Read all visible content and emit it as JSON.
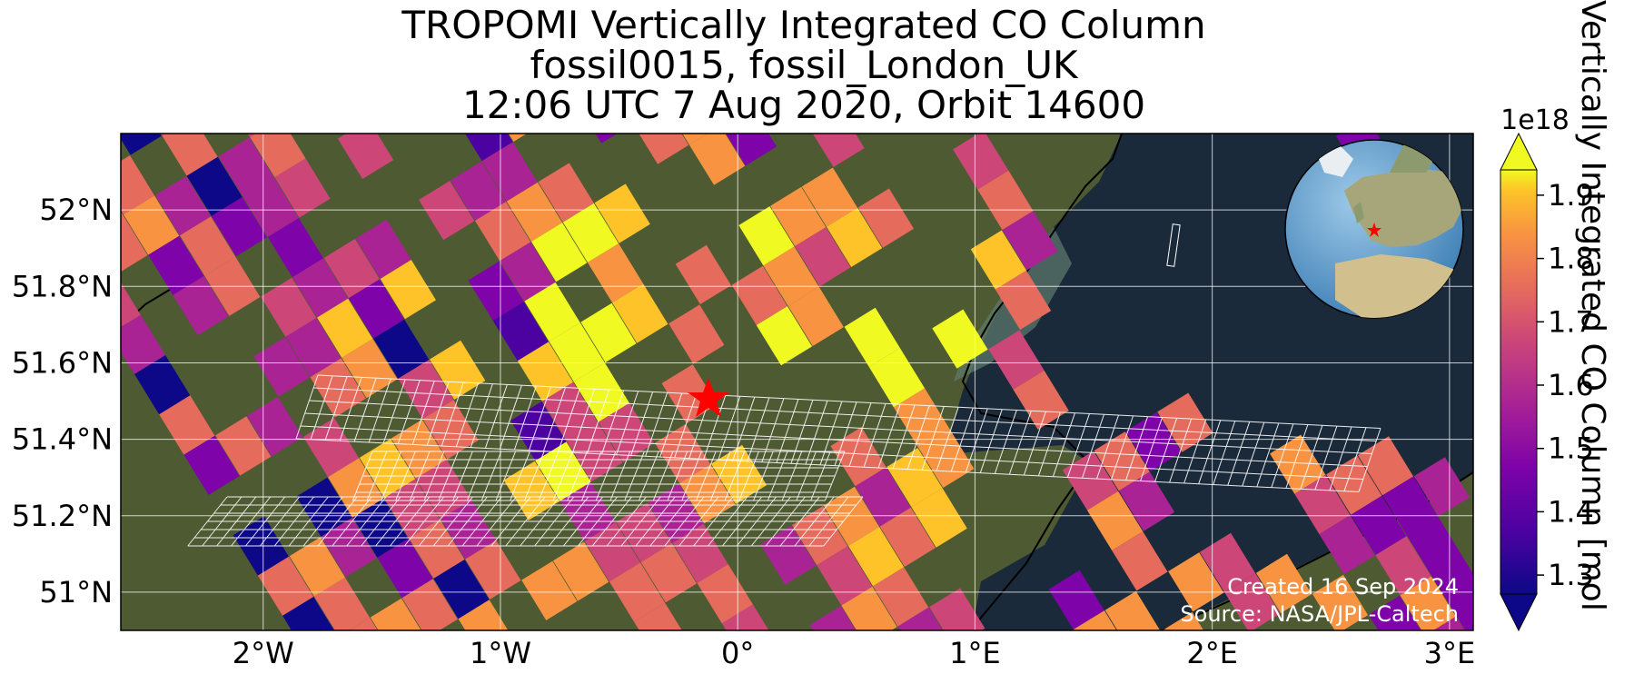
{
  "title": {
    "line1": "TROPOMI Vertically Integrated CO Column",
    "line2": "fossil0015, fossil_London_UK",
    "line3": "12:06 UTC 7 Aug 2020, Orbit 14600"
  },
  "axes": {
    "x_ticks": [
      "2°W",
      "1°W",
      "0°",
      "1°E",
      "2°E",
      "3°E"
    ],
    "y_ticks": [
      "52°N",
      "51.8°N",
      "51.6°N",
      "51.4°N",
      "51.2°N",
      "51°N"
    ],
    "lon_range": [
      -2.6,
      3.1
    ],
    "lat_range": [
      50.9,
      52.2
    ],
    "grid": true
  },
  "colorbar": {
    "label": "Vertically Integrated CO Column [mol",
    "exponent": "1e18",
    "ticks": [
      "1.3",
      "1.4",
      "1.5",
      "1.6",
      "1.7",
      "1.8",
      "1.9"
    ],
    "range": [
      1.27,
      1.94
    ],
    "colormap": "plasma",
    "extend": "both"
  },
  "credits": {
    "created": "Created 16 Sep 2024",
    "source": "Source: NASA/JPL-Caltech"
  },
  "target": {
    "name": "fossil_London_UK",
    "lon": -0.13,
    "lat": 51.51,
    "marker": "red-star"
  },
  "inset": {
    "type": "globe",
    "marker": "red-star"
  },
  "colors": {
    "sea": "#1b2a3a",
    "land": "#4e5a32",
    "star": "#ff0000",
    "grid": "#ffffff"
  }
}
